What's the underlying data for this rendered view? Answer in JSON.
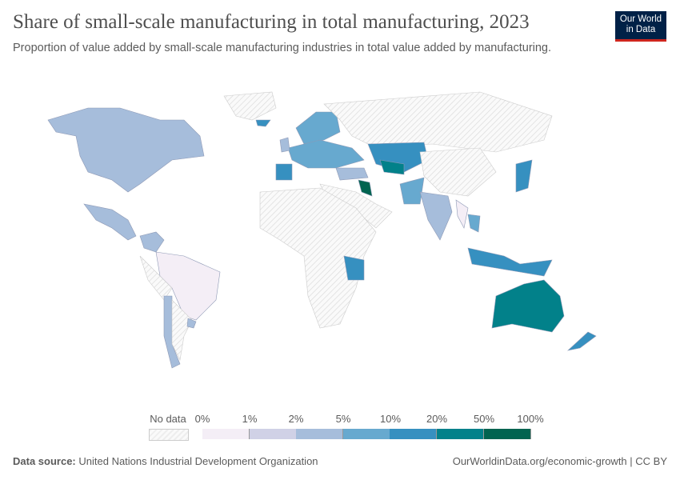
{
  "header": {
    "title": "Share of small-scale manufacturing in total manufacturing, 2023",
    "subtitle": "Proportion of value added by small-scale manufacturing industries in total value added by manufacturing.",
    "logo": "Our World in Data"
  },
  "legend": {
    "no_data_label": "No data",
    "ticks": [
      "0%",
      "1%",
      "2%",
      "5%",
      "10%",
      "20%",
      "50%",
      "100%"
    ],
    "colors": [
      "#f4eef6",
      "#d0d1e6",
      "#a6bddb",
      "#67a9cf",
      "#3690c0",
      "#02818a",
      "#016450"
    ]
  },
  "footer": {
    "source_label": "Data source:",
    "source": "United Nations Industrial Development Organization",
    "link": "OurWorldinData.org/economic-growth | CC BY"
  }
}
